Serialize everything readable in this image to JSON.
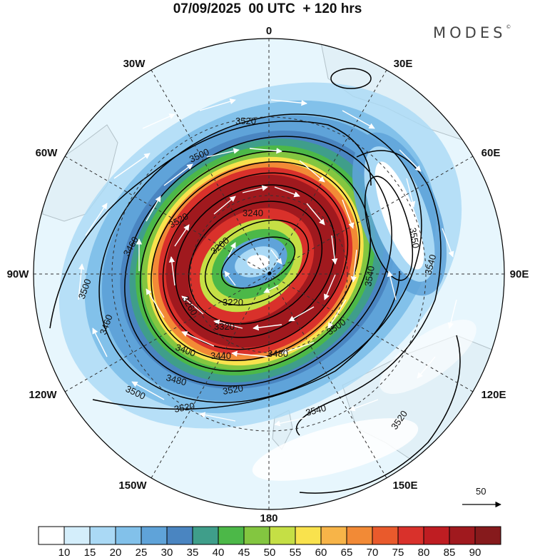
{
  "title": "07/09/2025  00 UTC  + 120 hrs",
  "brand": "MODES",
  "brand_mark": "©",
  "longitude_labels": {
    "lon_0": "0",
    "lon_30e": "30E",
    "lon_60e": "60E",
    "lon_90e": "90E",
    "lon_120e": "120E",
    "lon_150e": "150E",
    "lon_180": "180",
    "lon_150w": "150W",
    "lon_120w": "120W",
    "lon_90w": "90W",
    "lon_60w": "60W",
    "lon_30w": "30W"
  },
  "contour_labels": {
    "c1": "3520",
    "c2": "3500",
    "c3": "3240",
    "c4": "3200",
    "c5": "3220",
    "c6": "3260",
    "c7": "3320",
    "c8": "3400",
    "c9": "3440",
    "c10": "3480",
    "c11": "3460",
    "c12": "3500",
    "c13": "3460",
    "c14": "3480",
    "c15": "3500",
    "c16": "3520",
    "c17": "3520",
    "c18": "3540",
    "c19": "3520",
    "c20": "3540",
    "c21": "3550",
    "c22": "3540",
    "c23": "3500",
    "c24": "3520"
  },
  "reference_vector": {
    "label": "50"
  },
  "colorbar": {
    "ticks": [
      "10",
      "15",
      "20",
      "25",
      "30",
      "35",
      "40",
      "45",
      "50",
      "55",
      "60",
      "65",
      "70",
      "75",
      "80",
      "85",
      "90"
    ],
    "colors": [
      "#ffffff",
      "#d4eefb",
      "#aad9f5",
      "#82c1ea",
      "#5fa3d9",
      "#4a85c1",
      "#3f9e8a",
      "#4cb848",
      "#83c640",
      "#c5df45",
      "#f9e24d",
      "#f7b448",
      "#f28a36",
      "#e95a2c",
      "#d9312b",
      "#bf1d22",
      "#a0191e",
      "#861a1c"
    ]
  },
  "map_colors": {
    "land": "#f2f2f2",
    "coast": "#8c8c8c",
    "contour": "#000000",
    "grid": "#333333",
    "wind_vector": "#ffffff"
  }
}
